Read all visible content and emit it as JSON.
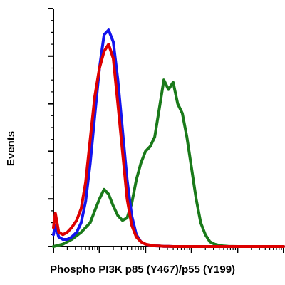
{
  "chart_data": {
    "type": "line",
    "subtype": "flow-cytometry-histogram",
    "title": "",
    "xlabel": "Phospho PI3K p85 (Y467)/p55 (Y199)",
    "ylabel": "Events",
    "x_scale": "log",
    "xlim": [
      1,
      100000
    ],
    "ylim": [
      0,
      100
    ],
    "y_major_tick_count": 6,
    "tick_labels_shown": false,
    "grid": false,
    "legend": "none",
    "series": [
      {
        "color": "#dd0000",
        "x": [
          1.0,
          1.1,
          1.3,
          1.6,
          2.0,
          2.5,
          3.2,
          4.0,
          5.0,
          6.3,
          7.9,
          10.0,
          12.6,
          15.8,
          20.0,
          25.1,
          31.6,
          39.8,
          50.1,
          63.1,
          79.4,
          100.0,
          125.9,
          158.5,
          199.5,
          251.2,
          316.2,
          398.1,
          1000.0,
          100000.0
        ],
        "values": [
          8,
          14,
          6,
          5,
          6,
          8,
          11,
          16,
          27,
          45,
          63,
          75,
          82,
          85,
          79,
          60,
          40,
          20,
          9,
          4,
          2,
          1,
          0.6,
          0.3,
          0.2,
          0.1,
          0.05,
          0,
          0,
          0
        ]
      },
      {
        "color": "#1414ee",
        "x": [
          1.0,
          1.1,
          1.3,
          1.6,
          2.0,
          2.5,
          3.2,
          4.0,
          5.0,
          6.3,
          7.9,
          10.0,
          12.6,
          15.8,
          20.0,
          25.1,
          31.6,
          39.8,
          50.1,
          63.1,
          79.4,
          100.0,
          125.9,
          158.5,
          199.5,
          251.2,
          316.2,
          398.1,
          1000.0,
          100000.0
        ],
        "values": [
          5,
          9,
          4,
          3,
          3,
          4,
          6,
          10,
          19,
          35,
          55,
          75,
          89,
          91,
          86,
          70,
          49,
          28,
          13,
          5,
          2,
          1,
          0.5,
          0.3,
          0.2,
          0.1,
          0.05,
          0,
          0,
          0
        ]
      },
      {
        "color": "#1a7a1a",
        "x": [
          1.0,
          1.6,
          2.5,
          4.0,
          6.3,
          7.9,
          10.0,
          12.6,
          15.8,
          20.0,
          25.1,
          31.6,
          39.8,
          50.1,
          63.1,
          79.4,
          100.0,
          125.9,
          158.5,
          199.5,
          251.2,
          316.2,
          398.1,
          501.2,
          631.0,
          794.3,
          1000.0,
          1258.9,
          1584.9,
          1995.3,
          2511.9,
          3162.3,
          3981.1,
          5011.9,
          6309.6,
          10000.0,
          100000.0
        ],
        "values": [
          0,
          1,
          3,
          6,
          10,
          15,
          20,
          24,
          22,
          17,
          13,
          11,
          12,
          18,
          28,
          35,
          40,
          42,
          46,
          58,
          70,
          66,
          69,
          60,
          56,
          46,
          33,
          20,
          10,
          5,
          2,
          1,
          0.5,
          0.2,
          0.1,
          0,
          0
        ]
      }
    ]
  }
}
